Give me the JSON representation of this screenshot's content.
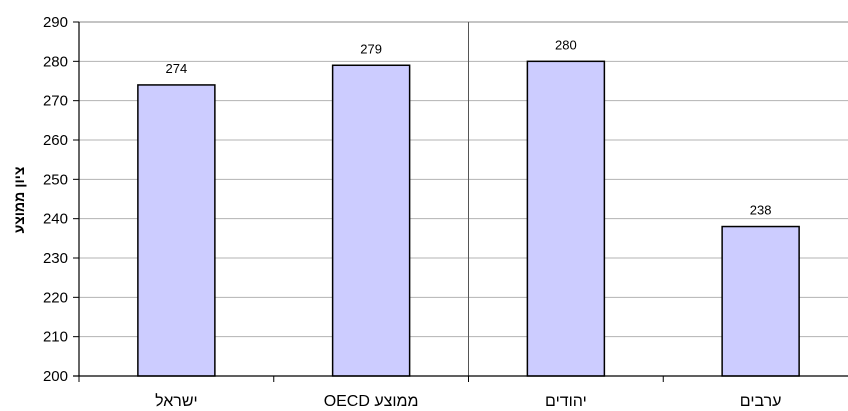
{
  "chart_data": {
    "type": "bar",
    "title": "",
    "xlabel": "",
    "ylabel": "ציון ממוצע",
    "categories": [
      "ישראל",
      "ממוצע OECD",
      "יהודים",
      "ערבים"
    ],
    "values": [
      274,
      279,
      280,
      238
    ],
    "data_labels": [
      "274",
      "279",
      "280",
      "238"
    ],
    "ylim": [
      200,
      290
    ],
    "yticks": [
      200,
      210,
      220,
      230,
      240,
      250,
      260,
      270,
      280,
      290
    ],
    "grid": true,
    "legend": "none",
    "bar_color": "#ccccff",
    "bar_edge_color": "#000000",
    "separator_after_category_index": 1
  }
}
